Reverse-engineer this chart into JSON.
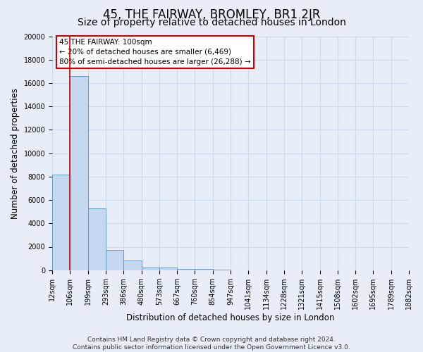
{
  "title": "45, THE FAIRWAY, BROMLEY, BR1 2JR",
  "subtitle": "Size of property relative to detached houses in London",
  "xlabel": "Distribution of detached houses by size in London",
  "ylabel": "Number of detached properties",
  "bin_labels": [
    "12sqm",
    "106sqm",
    "199sqm",
    "293sqm",
    "386sqm",
    "480sqm",
    "573sqm",
    "667sqm",
    "760sqm",
    "854sqm",
    "947sqm",
    "1041sqm",
    "1134sqm",
    "1228sqm",
    "1321sqm",
    "1415sqm",
    "1508sqm",
    "1602sqm",
    "1695sqm",
    "1789sqm",
    "1882sqm"
  ],
  "bar_values": [
    8200,
    16600,
    5300,
    1750,
    800,
    250,
    200,
    120,
    80,
    50,
    0,
    0,
    0,
    0,
    0,
    0,
    0,
    0,
    0,
    0
  ],
  "bar_color": "#c5d8f0",
  "bar_edge_color": "#5a8fc2",
  "red_line_x": 1,
  "annotation_line1": "45 THE FAIRWAY: 100sqm",
  "annotation_line2": "← 20% of detached houses are smaller (6,469)",
  "annotation_line3": "80% of semi-detached houses are larger (26,288) →",
  "box_color": "#ffffff",
  "box_edge_color": "#cc0000",
  "red_line_color": "#cc0000",
  "ylim": [
    0,
    20000
  ],
  "yticks": [
    0,
    2000,
    4000,
    6000,
    8000,
    10000,
    12000,
    14000,
    16000,
    18000,
    20000
  ],
  "footer_line1": "Contains HM Land Registry data © Crown copyright and database right 2024.",
  "footer_line2": "Contains public sector information licensed under the Open Government Licence v3.0.",
  "background_color": "#e8eef7",
  "grid_color": "#cdd9ed",
  "title_fontsize": 12,
  "subtitle_fontsize": 10,
  "axis_label_fontsize": 8.5,
  "tick_fontsize": 7,
  "footer_fontsize": 6.5
}
